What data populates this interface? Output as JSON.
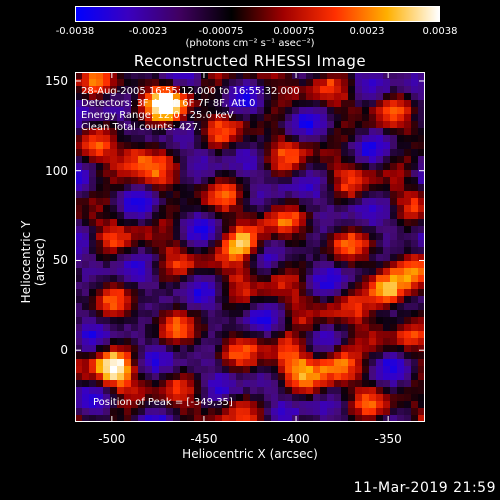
{
  "colorbar": {
    "ticks": [
      "-0.0038",
      "-0.0023",
      "-0.00075",
      "0.00075",
      "0.0023",
      "0.0038"
    ],
    "units": "(photons cm⁻² s⁻¹ asec⁻²)",
    "colors": [
      "#0000ff",
      "#3a00c0",
      "#400060",
      "#000000",
      "#a00000",
      "#ff3000",
      "#ffb000",
      "#ffffff"
    ]
  },
  "chart_data": {
    "type": "heatmap",
    "title": "Reconstructed RHESSI Image",
    "xlabel": "Heliocentric X (arcsec)",
    "ylabel": "Heliocentric Y (arcsec)",
    "xlim": [
      -520,
      -330
    ],
    "ylim": [
      -40,
      155
    ],
    "xticks": [
      -500,
      -450,
      -400,
      -350
    ],
    "yticks": [
      0,
      50,
      100,
      150
    ],
    "xtick_labels": [
      "-500",
      "-450",
      "-400",
      "-350"
    ],
    "ytick_labels": [
      "0",
      "50",
      "100",
      "150"
    ],
    "zlim": [
      -0.0038,
      0.0038
    ],
    "peak": [
      -349,
      35
    ],
    "annotations": {
      "time": "28-Aug-2005 16:55:12.000 to 16:55:32.000",
      "detectors": "Detectors: 3F 4F 5F 6F 7F 8F, Att 0",
      "energy": "Energy Range: 12.0 - 25.0 keV",
      "method": "Clean     Total counts: 427.",
      "peak_text": "Position of Peak = [-349,35]"
    }
  },
  "footer": {
    "timestamp": "11-Mar-2019 21:59"
  }
}
